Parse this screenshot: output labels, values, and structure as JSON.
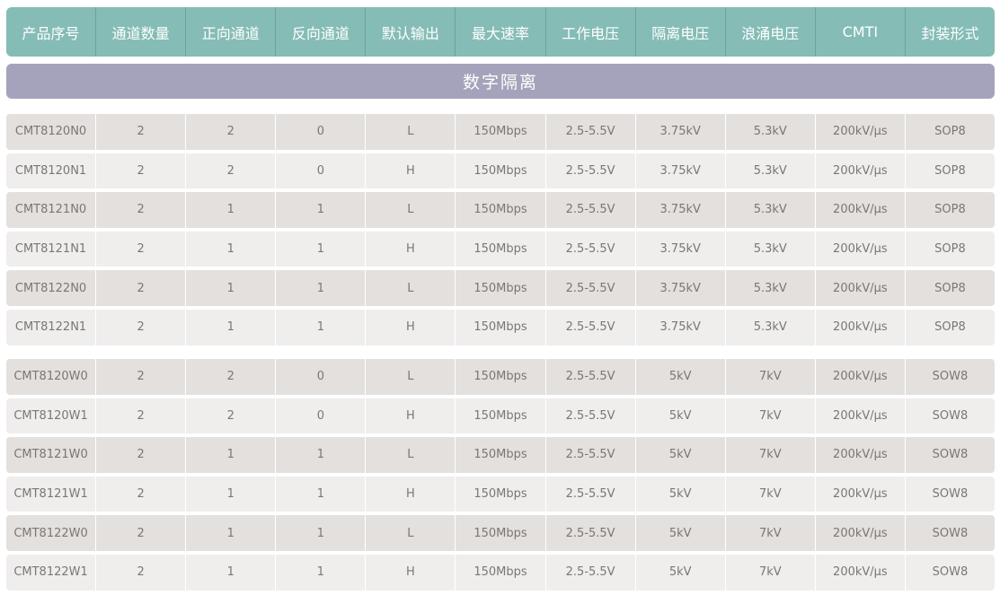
{
  "headers": [
    "产品序号",
    "通道数量",
    "正向通道",
    "反向通道",
    "默认输出",
    "最大速率",
    "工作电压",
    "隔离电压",
    "浪涌电压",
    "CMTI",
    "封装形式"
  ],
  "section_title": "数字隔离",
  "groups": [
    [
      [
        "CMT8120N0",
        "2",
        "2",
        "0",
        "L",
        "150Mbps",
        "2.5-5.5V",
        "3.75kV",
        "5.3kV",
        "200kV/μs",
        "SOP8"
      ],
      [
        "CMT8120N1",
        "2",
        "2",
        "0",
        "H",
        "150Mbps",
        "2.5-5.5V",
        "3.75kV",
        "5.3kV",
        "200kV/μs",
        "SOP8"
      ],
      [
        "CMT8121N0",
        "2",
        "1",
        "1",
        "L",
        "150Mbps",
        "2.5-5.5V",
        "3.75kV",
        "5.3kV",
        "200kV/μs",
        "SOP8"
      ],
      [
        "CMT8121N1",
        "2",
        "1",
        "1",
        "H",
        "150Mbps",
        "2.5-5.5V",
        "3.75kV",
        "5.3kV",
        "200kV/μs",
        "SOP8"
      ],
      [
        "CMT8122N0",
        "2",
        "1",
        "1",
        "L",
        "150Mbps",
        "2.5-5.5V",
        "3.75kV",
        "5.3kV",
        "200kV/μs",
        "SOP8"
      ],
      [
        "CMT8122N1",
        "2",
        "1",
        "1",
        "H",
        "150Mbps",
        "2.5-5.5V",
        "3.75kV",
        "5.3kV",
        "200kV/μs",
        "SOP8"
      ]
    ],
    [
      [
        "CMT8120W0",
        "2",
        "2",
        "0",
        "L",
        "150Mbps",
        "2.5-5.5V",
        "5kV",
        "7kV",
        "200kV/μs",
        "SOW8"
      ],
      [
        "CMT8120W1",
        "2",
        "2",
        "0",
        "H",
        "150Mbps",
        "2.5-5.5V",
        "5kV",
        "7kV",
        "200kV/μs",
        "SOW8"
      ],
      [
        "CMT8121W0",
        "2",
        "1",
        "1",
        "L",
        "150Mbps",
        "2.5-5.5V",
        "5kV",
        "7kV",
        "200kV/μs",
        "SOW8"
      ],
      [
        "CMT8121W1",
        "2",
        "1",
        "1",
        "H",
        "150Mbps",
        "2.5-5.5V",
        "5kV",
        "7kV",
        "200kV/μs",
        "SOW8"
      ],
      [
        "CMT8122W0",
        "2",
        "1",
        "1",
        "L",
        "150Mbps",
        "2.5-5.5V",
        "5kV",
        "7kV",
        "200kV/μs",
        "SOW8"
      ],
      [
        "CMT8122W1",
        "2",
        "1",
        "1",
        "H",
        "150Mbps",
        "2.5-5.5V",
        "5kV",
        "7kV",
        "200kV/μs",
        "SOW8"
      ]
    ]
  ],
  "colors": {
    "header": "#85bcb6",
    "section": "#a5a3bb",
    "row_dark": "#e4e0de",
    "row_light": "#f0eeed"
  }
}
